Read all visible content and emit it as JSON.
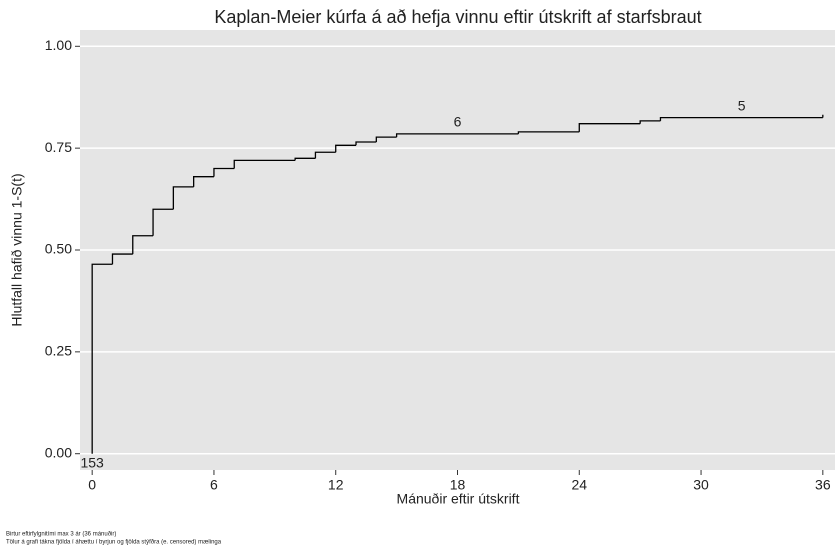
{
  "chart_data": {
    "type": "step",
    "title": "Kaplan-Meier kúrfa á að hefja vinnu eftir útskrift af starfsbraut",
    "xlabel": "Mánuðir eftir útskrift",
    "ylabel": "Hlutfall hafið vinnu 1-S(t)",
    "notes": [
      "Birtur eftirfylgnitími max 3 ár (36 mánuðir)",
      "Tölur á grafi tákna fjölda í áhættu í byrjun og fjölda stýfðra (e. censored) mælinga"
    ],
    "x": [
      0,
      1,
      2,
      3,
      4,
      5,
      6,
      7,
      10,
      11,
      12,
      13,
      14,
      15,
      21,
      24,
      27,
      28,
      36
    ],
    "values": [
      0.465,
      0.49,
      0.535,
      0.6,
      0.655,
      0.68,
      0.7,
      0.72,
      0.725,
      0.74,
      0.757,
      0.765,
      0.777,
      0.785,
      0.79,
      0.81,
      0.817,
      0.825,
      0.832
    ],
    "color": "#000000",
    "at_risk": [
      {
        "x": 0,
        "label": 153
      },
      {
        "x": 18,
        "label": 6
      },
      {
        "x": 32,
        "label": 5
      }
    ],
    "xlim": [
      -0.6,
      36.6
    ],
    "xticks": [
      0,
      6,
      12,
      18,
      24,
      30,
      36
    ],
    "ylim": [
      -0.04,
      1.04
    ],
    "yticks": [
      {
        "value": 0,
        "label": "0.00"
      },
      {
        "value": 0.25,
        "label": "0.25"
      },
      {
        "value": 0.5,
        "label": "0.50"
      },
      {
        "value": 0.75,
        "label": "0.75"
      },
      {
        "value": 1,
        "label": "1.00"
      }
    ],
    "grid": true,
    "background": "#e5e5e5"
  }
}
